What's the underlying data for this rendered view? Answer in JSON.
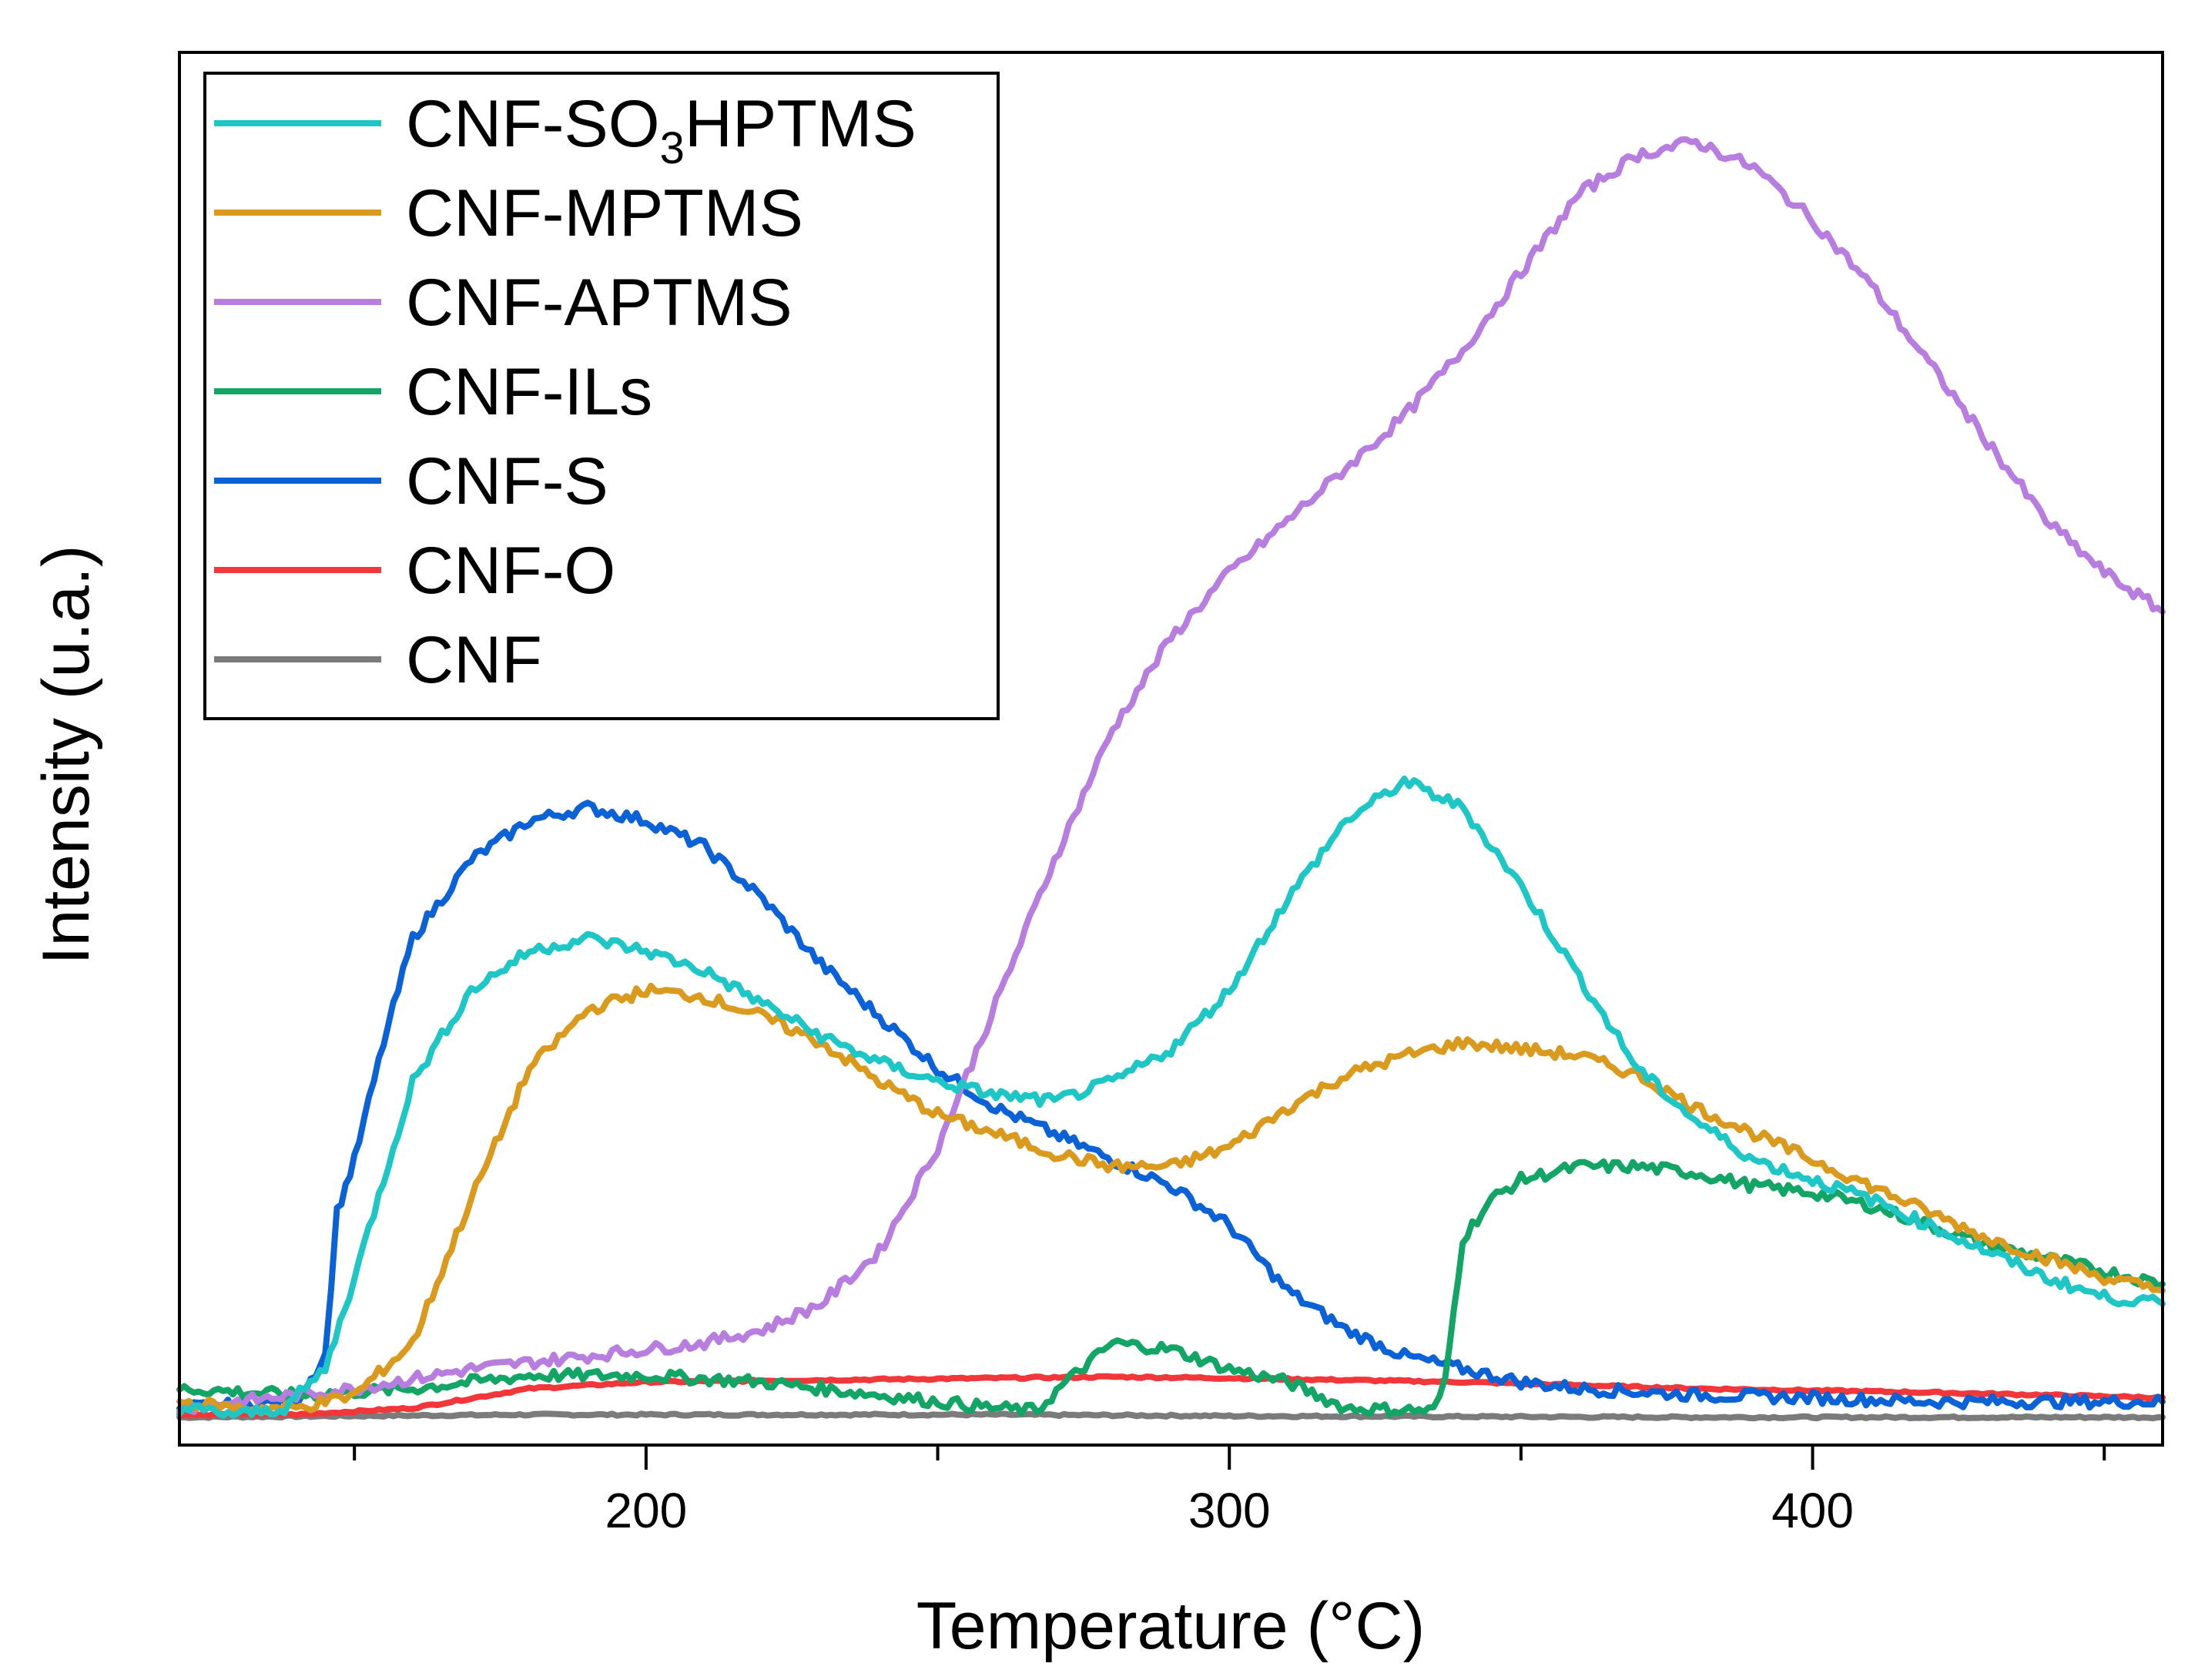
{
  "chart_data": {
    "type": "line",
    "title": "",
    "xlabel": "Temperature (°C)",
    "ylabel": "Intensity (u.a.)",
    "xlim": [
      120,
      460
    ],
    "ylim": [
      0,
      100
    ],
    "x_ticks": [
      200,
      300,
      400
    ],
    "x_tick_labels": [
      "200",
      "300",
      "400"
    ],
    "x_minor_ticks": [
      150,
      250,
      350,
      450
    ],
    "y_ticks_shown": false,
    "grid": false,
    "legend_position": "top-left",
    "legend": {
      "so3h_main": "CNF-SO",
      "so3h_sub": "3",
      "so3h_tail": "HPTMS"
    },
    "series": [
      {
        "name": "CNF-SO3HPTMS",
        "color": "#1fc6c6",
        "points": [
          [
            120,
            1
          ],
          [
            130,
            0.5
          ],
          [
            138,
            1
          ],
          [
            145,
            4
          ],
          [
            150,
            11
          ],
          [
            160,
            26
          ],
          [
            170,
            33
          ],
          [
            180,
            36
          ],
          [
            190,
            37
          ],
          [
            200,
            36
          ],
          [
            210,
            34.5
          ],
          [
            220,
            32
          ],
          [
            230,
            29.5
          ],
          [
            240,
            27.5
          ],
          [
            250,
            26
          ],
          [
            260,
            25
          ],
          [
            270,
            24.5
          ],
          [
            280,
            26
          ],
          [
            290,
            28.5
          ],
          [
            300,
            33
          ],
          [
            310,
            40
          ],
          [
            320,
            46
          ],
          [
            330,
            49
          ],
          [
            340,
            47
          ],
          [
            350,
            41
          ],
          [
            360,
            34
          ],
          [
            370,
            27
          ],
          [
            380,
            23
          ],
          [
            390,
            20
          ],
          [
            400,
            18.5
          ],
          [
            410,
            17
          ],
          [
            420,
            15
          ],
          [
            430,
            13
          ],
          [
            440,
            11
          ],
          [
            450,
            9.5
          ],
          [
            460,
            9
          ]
        ]
      },
      {
        "name": "CNF-MPTMS",
        "color": "#d99a1e",
        "points": [
          [
            120,
            1.5
          ],
          [
            130,
            1
          ],
          [
            140,
            1
          ],
          [
            150,
            2
          ],
          [
            160,
            6
          ],
          [
            170,
            17
          ],
          [
            180,
            27
          ],
          [
            190,
            31.5
          ],
          [
            200,
            33
          ],
          [
            210,
            32.5
          ],
          [
            220,
            31
          ],
          [
            230,
            29
          ],
          [
            240,
            26
          ],
          [
            250,
            23.5
          ],
          [
            260,
            22
          ],
          [
            270,
            20.5
          ],
          [
            280,
            19.5
          ],
          [
            290,
            19.5
          ],
          [
            300,
            21
          ],
          [
            310,
            24
          ],
          [
            320,
            26.5
          ],
          [
            330,
            28
          ],
          [
            340,
            29
          ],
          [
            350,
            28.5
          ],
          [
            360,
            28
          ],
          [
            370,
            26.5
          ],
          [
            380,
            24
          ],
          [
            390,
            22
          ],
          [
            400,
            20
          ],
          [
            410,
            18
          ],
          [
            420,
            16
          ],
          [
            430,
            14
          ],
          [
            440,
            12.5
          ],
          [
            450,
            11
          ],
          [
            460,
            10
          ]
        ]
      },
      {
        "name": "CNF-APTMS",
        "color": "#b77ee0",
        "points": [
          [
            120,
            1
          ],
          [
            150,
            2.5
          ],
          [
            170,
            4
          ],
          [
            180,
            4.5
          ],
          [
            190,
            5
          ],
          [
            200,
            5.5
          ],
          [
            210,
            6
          ],
          [
            220,
            7
          ],
          [
            230,
            9
          ],
          [
            240,
            13
          ],
          [
            250,
            21
          ],
          [
            260,
            32
          ],
          [
            270,
            43
          ],
          [
            280,
            53
          ],
          [
            290,
            60
          ],
          [
            300,
            65
          ],
          [
            310,
            69
          ],
          [
            320,
            73
          ],
          [
            330,
            77
          ],
          [
            340,
            82
          ],
          [
            350,
            88
          ],
          [
            360,
            94
          ],
          [
            370,
            97
          ],
          [
            380,
            98
          ],
          [
            390,
            96
          ],
          [
            400,
            92
          ],
          [
            410,
            87
          ],
          [
            420,
            81
          ],
          [
            430,
            75
          ],
          [
            440,
            69
          ],
          [
            450,
            65
          ],
          [
            460,
            62
          ]
        ]
      },
      {
        "name": "CNF-ILs",
        "color": "#13a565",
        "points": [
          [
            120,
            2.5
          ],
          [
            140,
            2
          ],
          [
            160,
            2.5
          ],
          [
            180,
            3.5
          ],
          [
            200,
            3.5
          ],
          [
            220,
            3
          ],
          [
            240,
            2
          ],
          [
            260,
            1
          ],
          [
            267,
            0.8
          ],
          [
            272,
            3
          ],
          [
            280,
            6
          ],
          [
            290,
            5.5
          ],
          [
            300,
            4
          ],
          [
            310,
            3
          ],
          [
            320,
            1
          ],
          [
            335,
            0.8
          ],
          [
            337,
            3
          ],
          [
            340,
            14
          ],
          [
            345,
            17
          ],
          [
            350,
            18.5
          ],
          [
            360,
            19.5
          ],
          [
            370,
            19.5
          ],
          [
            380,
            19
          ],
          [
            390,
            18
          ],
          [
            400,
            17.5
          ],
          [
            410,
            16.5
          ],
          [
            420,
            15
          ],
          [
            430,
            13.5
          ],
          [
            440,
            12.5
          ],
          [
            450,
            11.5
          ],
          [
            460,
            10.5
          ]
        ]
      },
      {
        "name": "CNF-S",
        "color": "#0a62d6",
        "points": [
          [
            120,
            1
          ],
          [
            140,
            1.5
          ],
          [
            145,
            5
          ],
          [
            147,
            16
          ],
          [
            150,
            20
          ],
          [
            155,
            29
          ],
          [
            160,
            37
          ],
          [
            170,
            43
          ],
          [
            180,
            46
          ],
          [
            190,
            47
          ],
          [
            200,
            46
          ],
          [
            210,
            44
          ],
          [
            220,
            40
          ],
          [
            230,
            35
          ],
          [
            240,
            31
          ],
          [
            250,
            27
          ],
          [
            260,
            24
          ],
          [
            270,
            22
          ],
          [
            280,
            20
          ],
          [
            290,
            18
          ],
          [
            300,
            15
          ],
          [
            310,
            10
          ],
          [
            320,
            7
          ],
          [
            330,
            5
          ],
          [
            340,
            4
          ],
          [
            350,
            3
          ],
          [
            360,
            2.5
          ],
          [
            380,
            2
          ],
          [
            400,
            1.8
          ],
          [
            420,
            1.5
          ],
          [
            440,
            1.5
          ],
          [
            460,
            1.5
          ]
        ]
      },
      {
        "name": "CNF-O",
        "color": "#f2373b",
        "points": [
          [
            120,
            0.5
          ],
          [
            140,
            0.5
          ],
          [
            160,
            1
          ],
          [
            180,
            2.5
          ],
          [
            200,
            3
          ],
          [
            240,
            3.2
          ],
          [
            280,
            3.4
          ],
          [
            300,
            3.3
          ],
          [
            340,
            3
          ],
          [
            380,
            2.5
          ],
          [
            420,
            2.2
          ],
          [
            460,
            1.8
          ]
        ]
      },
      {
        "name": "CNF",
        "color": "#7b7b7b",
        "points": [
          [
            120,
            0.3
          ],
          [
            150,
            0.4
          ],
          [
            180,
            0.5
          ],
          [
            220,
            0.5
          ],
          [
            260,
            0.5
          ],
          [
            300,
            0.4
          ],
          [
            340,
            0.35
          ],
          [
            380,
            0.3
          ],
          [
            420,
            0.3
          ],
          [
            460,
            0.3
          ]
        ]
      }
    ]
  }
}
